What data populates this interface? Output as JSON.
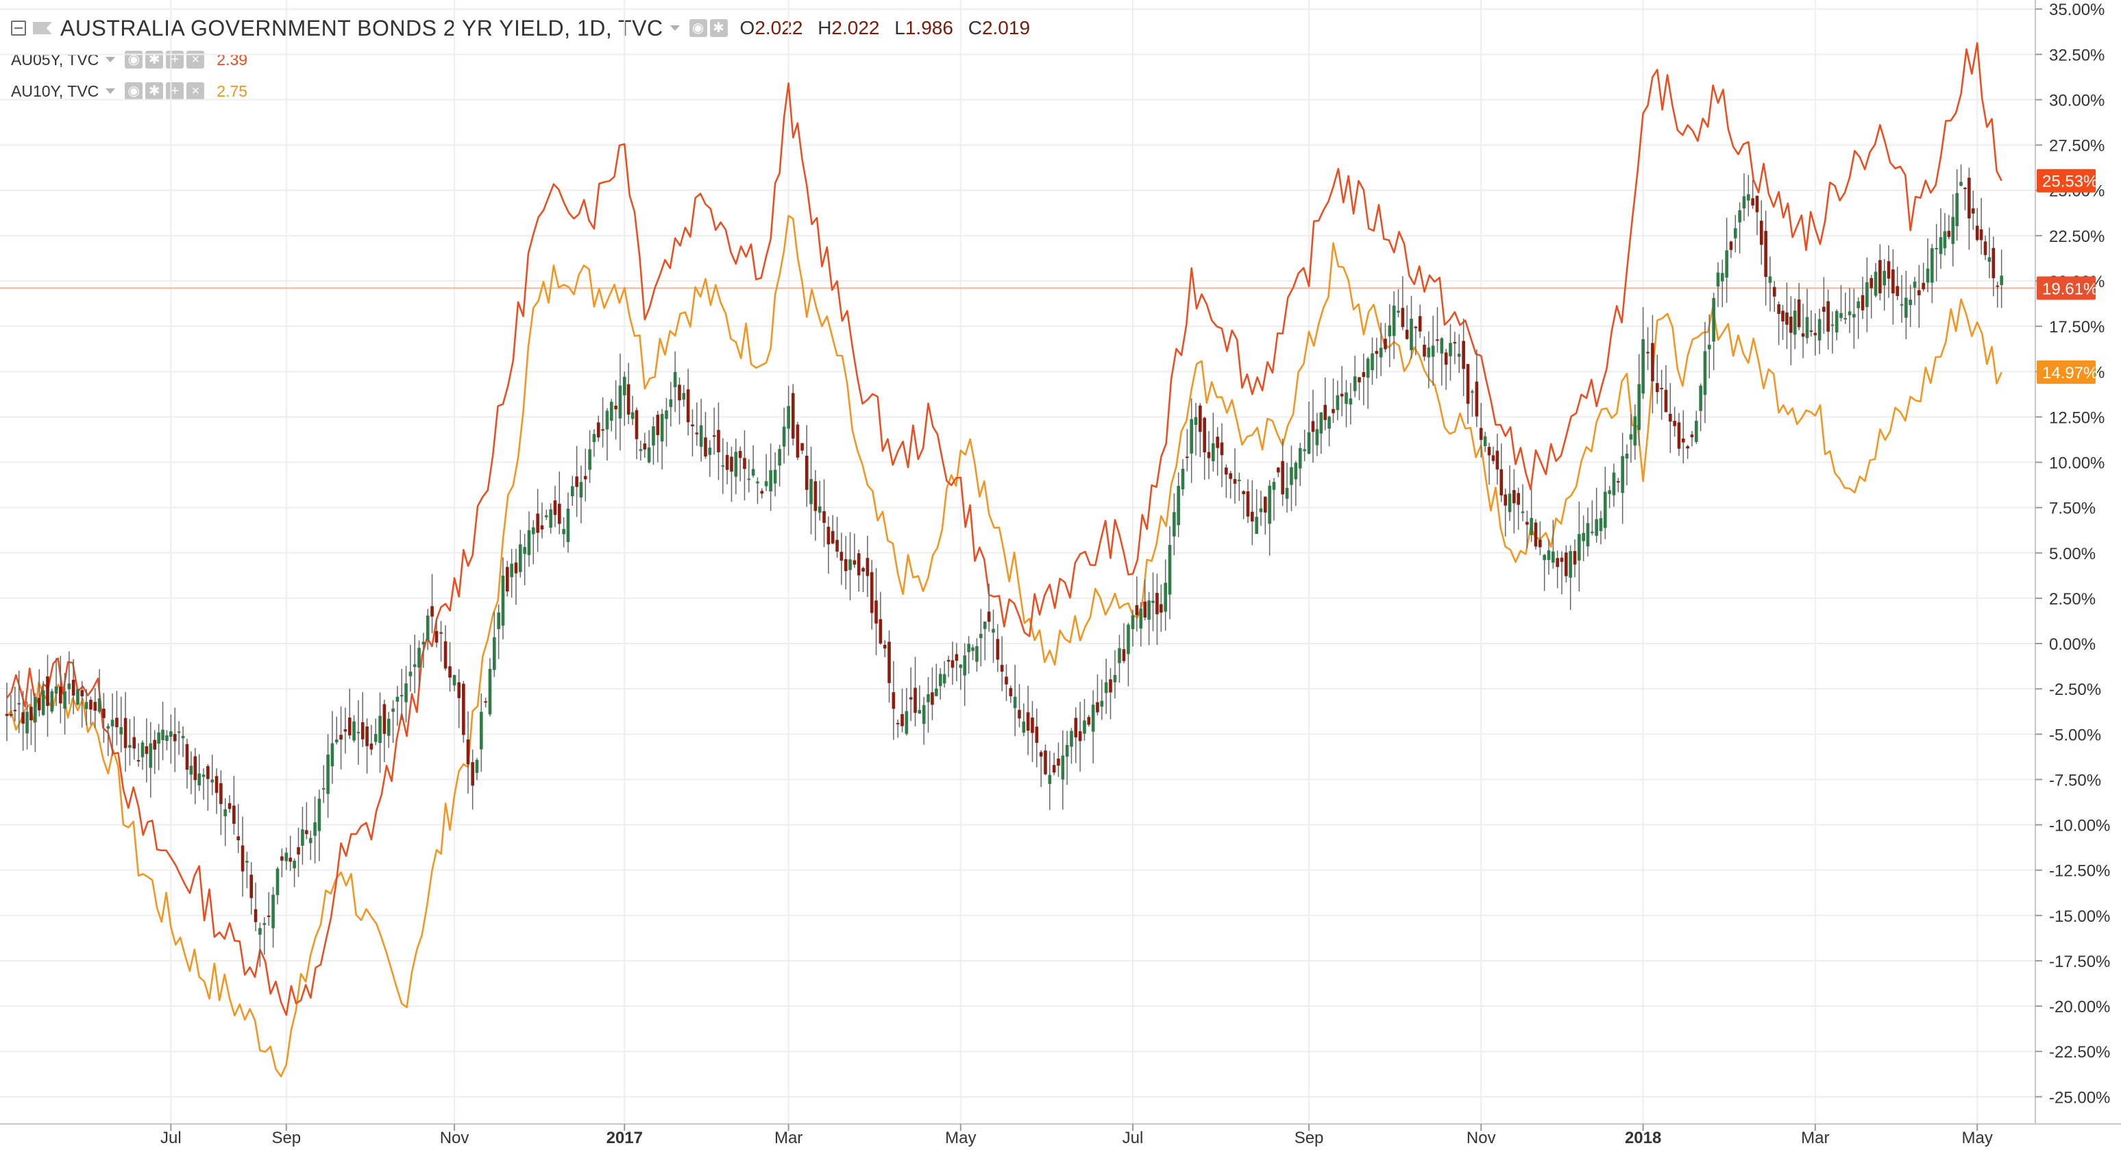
{
  "header": {
    "title": "AUSTRALIA GOVERNMENT BONDS 2 YR YIELD, 1D, TVC",
    "ohlc": [
      {
        "label": "O",
        "value": "2.022"
      },
      {
        "label": "H",
        "value": "2.022"
      },
      {
        "label": "L",
        "value": "1.986"
      },
      {
        "label": "C",
        "value": "2.019"
      }
    ]
  },
  "compare": [
    {
      "symbol": "AU05Y, TVC",
      "value": "2.39",
      "color": "#f04a1b"
    },
    {
      "symbol": "AU10Y, TVC",
      "value": "2.75",
      "color": "#f7931a"
    }
  ],
  "colors": {
    "up": "#2e7d46",
    "down": "#8f1d0e",
    "wick": "#666666",
    "au05y": "#f04a1b",
    "au10y": "#f7931a",
    "grid": "#eeeeee",
    "hline": "#f4b49a",
    "badge_main": "#e8502e",
    "badge_au05y": "#f34a18",
    "badge_au10y": "#f7931a"
  },
  "chart_data": {
    "type": "line",
    "title": "AUSTRALIA GOVERNMENT BONDS 2 YR YIELD, 1D, TVC",
    "y_unit": "%",
    "ylim": [
      -26.5,
      35.5
    ],
    "y_ticks": [
      "35.00%",
      "32.50%",
      "30.00%",
      "27.50%",
      "25.00%",
      "22.50%",
      "20.00%",
      "17.50%",
      "15.00%",
      "12.50%",
      "10.00%",
      "7.50%",
      "5.00%",
      "2.50%",
      "0.00%",
      "-2.50%",
      "-5.00%",
      "-7.50%",
      "-10.00%",
      "-12.50%",
      "-15.00%",
      "-17.50%",
      "-20.00%",
      "-22.50%",
      "-25.00%"
    ],
    "x_ticks": [
      {
        "label": "Jul",
        "t": 0.081,
        "bold": false
      },
      {
        "label": "Sep",
        "t": 0.138,
        "bold": false
      },
      {
        "label": "Nov",
        "t": 0.221,
        "bold": false
      },
      {
        "label": "2017",
        "t": 0.305,
        "bold": true
      },
      {
        "label": "Mar",
        "t": 0.386,
        "bold": false
      },
      {
        "label": "May",
        "t": 0.471,
        "bold": false
      },
      {
        "label": "Jul",
        "t": 0.556,
        "bold": false
      },
      {
        "label": "Sep",
        "t": 0.643,
        "bold": false
      },
      {
        "label": "Nov",
        "t": 0.728,
        "bold": false
      },
      {
        "label": "2018",
        "t": 0.808,
        "bold": true
      },
      {
        "label": "Mar",
        "t": 0.893,
        "bold": false
      },
      {
        "label": "May",
        "t": 0.973,
        "bold": false
      }
    ],
    "current_values": [
      {
        "series": "AU05Y, TVC",
        "value": 25.53,
        "label": "25.53%"
      },
      {
        "series": "AUSTRALIA GOVERNMENT BONDS 2 YR YIELD",
        "value": 19.61,
        "label": "19.61%"
      },
      {
        "series": "AU10Y, TVC",
        "value": 14.97,
        "label": "14.97%"
      }
    ],
    "series": [
      {
        "name": "AUSTRALIA GOVERNMENT BONDS 2 YR YIELD",
        "style": "candles",
        "x": [
          0.0,
          0.018,
          0.035,
          0.05,
          0.065,
          0.081,
          0.095,
          0.11,
          0.125,
          0.138,
          0.15,
          0.165,
          0.18,
          0.195,
          0.21,
          0.221,
          0.23,
          0.245,
          0.26,
          0.275,
          0.29,
          0.305,
          0.315,
          0.33,
          0.345,
          0.36,
          0.375,
          0.386,
          0.395,
          0.41,
          0.425,
          0.44,
          0.455,
          0.471,
          0.485,
          0.5,
          0.515,
          0.53,
          0.545,
          0.556,
          0.57,
          0.585,
          0.6,
          0.615,
          0.63,
          0.643,
          0.655,
          0.67,
          0.685,
          0.7,
          0.715,
          0.728,
          0.74,
          0.755,
          0.77,
          0.785,
          0.8,
          0.808,
          0.815,
          0.83,
          0.845,
          0.86,
          0.875,
          0.893,
          0.91,
          0.925,
          0.94,
          0.955,
          0.965,
          0.973,
          0.985
        ],
        "values": [
          -4.5,
          -3.0,
          -2.5,
          -4.0,
          -6.0,
          -4.5,
          -7.5,
          -9.0,
          -15.5,
          -12.0,
          -10.0,
          -4.5,
          -5.5,
          -2.5,
          1.5,
          -2.0,
          -7.5,
          3.0,
          6.5,
          7.0,
          11.0,
          14.0,
          10.0,
          14.5,
          11.0,
          10.0,
          8.5,
          12.5,
          9.0,
          5.0,
          3.0,
          -4.0,
          -3.0,
          -1.0,
          1.0,
          -3.5,
          -7.0,
          -5.0,
          -2.0,
          1.0,
          2.5,
          12.0,
          10.0,
          7.0,
          9.0,
          11.0,
          13.0,
          14.5,
          18.0,
          16.5,
          16.0,
          12.0,
          8.0,
          6.0,
          4.0,
          7.0,
          10.0,
          16.0,
          14.0,
          10.0,
          20.0,
          25.0,
          18.0,
          17.5,
          18.0,
          20.0,
          19.0,
          22.0,
          25.0,
          23.0,
          19.61
        ]
      },
      {
        "name": "AU05Y, TVC",
        "style": "line",
        "x": [
          0.0,
          0.018,
          0.035,
          0.05,
          0.065,
          0.081,
          0.095,
          0.11,
          0.125,
          0.138,
          0.15,
          0.165,
          0.18,
          0.195,
          0.21,
          0.221,
          0.23,
          0.245,
          0.26,
          0.275,
          0.29,
          0.305,
          0.315,
          0.33,
          0.345,
          0.36,
          0.375,
          0.386,
          0.395,
          0.41,
          0.425,
          0.44,
          0.455,
          0.471,
          0.485,
          0.5,
          0.515,
          0.53,
          0.545,
          0.556,
          0.57,
          0.585,
          0.6,
          0.615,
          0.63,
          0.643,
          0.655,
          0.67,
          0.685,
          0.7,
          0.715,
          0.728,
          0.74,
          0.755,
          0.77,
          0.785,
          0.8,
          0.808,
          0.815,
          0.83,
          0.845,
          0.86,
          0.875,
          0.893,
          0.91,
          0.925,
          0.94,
          0.955,
          0.965,
          0.973,
          0.985
        ],
        "values": [
          -3.0,
          -2.0,
          -1.5,
          -4.0,
          -10.0,
          -12.0,
          -13.5,
          -16.5,
          -17.5,
          -19.5,
          -20.0,
          -12.0,
          -10.0,
          -5.0,
          0.0,
          3.0,
          6.0,
          13.0,
          22.5,
          25.0,
          24.0,
          28.0,
          19.0,
          22.0,
          25.0,
          22.0,
          21.0,
          30.0,
          25.0,
          19.0,
          13.5,
          10.0,
          12.0,
          8.5,
          3.0,
          0.5,
          3.0,
          4.0,
          6.0,
          4.0,
          10.0,
          20.0,
          18.0,
          14.0,
          17.0,
          21.0,
          26.0,
          24.0,
          22.5,
          20.0,
          18.0,
          15.5,
          11.0,
          9.5,
          11.0,
          14.0,
          20.0,
          28.0,
          31.0,
          28.5,
          30.0,
          27.0,
          24.0,
          22.5,
          26.5,
          28.0,
          24.0,
          27.0,
          31.0,
          32.5,
          25.53
        ]
      },
      {
        "name": "AU10Y, TVC",
        "style": "line",
        "x": [
          0.0,
          0.018,
          0.035,
          0.05,
          0.065,
          0.081,
          0.095,
          0.11,
          0.125,
          0.138,
          0.15,
          0.165,
          0.18,
          0.195,
          0.21,
          0.221,
          0.23,
          0.245,
          0.26,
          0.275,
          0.29,
          0.305,
          0.315,
          0.33,
          0.345,
          0.36,
          0.375,
          0.386,
          0.395,
          0.41,
          0.425,
          0.44,
          0.455,
          0.471,
          0.485,
          0.5,
          0.515,
          0.53,
          0.545,
          0.556,
          0.57,
          0.585,
          0.6,
          0.615,
          0.63,
          0.643,
          0.655,
          0.67,
          0.685,
          0.7,
          0.715,
          0.728,
          0.74,
          0.755,
          0.77,
          0.785,
          0.8,
          0.808,
          0.815,
          0.83,
          0.845,
          0.86,
          0.875,
          0.893,
          0.91,
          0.925,
          0.94,
          0.955,
          0.965,
          0.973,
          0.985
        ],
        "values": [
          -4.0,
          -3.0,
          -3.0,
          -6.0,
          -12.0,
          -15.5,
          -18.0,
          -19.5,
          -21.5,
          -23.0,
          -17.0,
          -12.0,
          -16.0,
          -20.0,
          -13.0,
          -8.0,
          -5.0,
          5.0,
          18.0,
          21.0,
          19.5,
          20.0,
          15.0,
          18.0,
          19.5,
          17.0,
          16.0,
          23.5,
          19.0,
          16.0,
          8.0,
          4.0,
          3.0,
          11.0,
          8.0,
          3.0,
          -1.0,
          1.0,
          3.0,
          2.0,
          6.0,
          15.0,
          14.0,
          10.5,
          12.0,
          16.0,
          21.0,
          18.0,
          16.5,
          15.0,
          12.0,
          10.0,
          6.0,
          5.0,
          8.0,
          12.0,
          15.0,
          10.0,
          18.0,
          15.0,
          18.0,
          16.0,
          14.0,
          12.5,
          9.0,
          11.0,
          13.0,
          16.0,
          19.0,
          17.0,
          14.97
        ]
      }
    ]
  }
}
